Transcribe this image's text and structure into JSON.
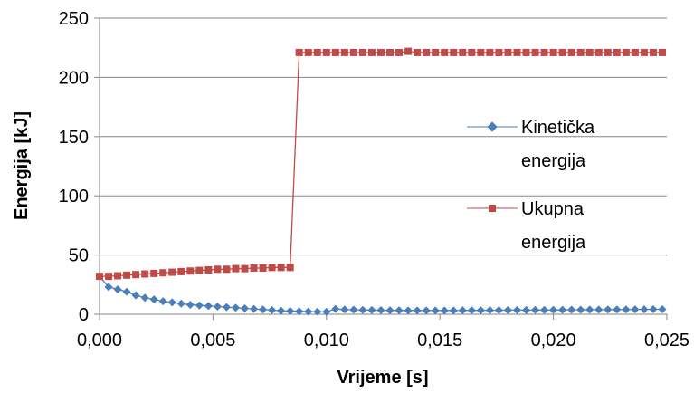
{
  "chart_data": {
    "type": "line",
    "xlabel": "Vrijeme [s]",
    "ylabel": "Energija [kJ]",
    "xlim": [
      0,
      0.025
    ],
    "ylim": [
      0,
      250
    ],
    "x_ticks": [
      "0,000",
      "0,005",
      "0,010",
      "0,015",
      "0,020",
      "0,025"
    ],
    "y_ticks": [
      "0",
      "50",
      "100",
      "150",
      "200",
      "250"
    ],
    "grid": "horizontal",
    "legend_position": "right",
    "series": [
      {
        "name_lines": [
          "Kinetička",
          "energija"
        ],
        "color": "#4A7EBB",
        "marker": "diamond",
        "x": [
          0.0,
          0.0004,
          0.0008,
          0.0012,
          0.0016,
          0.002,
          0.0024,
          0.0028,
          0.0032,
          0.0036,
          0.004,
          0.0044,
          0.0048,
          0.0052,
          0.0056,
          0.006,
          0.0064,
          0.0068,
          0.0072,
          0.0076,
          0.008,
          0.0084,
          0.0088,
          0.0092,
          0.0096,
          0.01,
          0.0104,
          0.0108,
          0.0112,
          0.0116,
          0.012,
          0.0124,
          0.0128,
          0.0132,
          0.0136,
          0.014,
          0.0144,
          0.0148,
          0.0152,
          0.0156,
          0.016,
          0.0164,
          0.0168,
          0.0172,
          0.0176,
          0.018,
          0.0184,
          0.0188,
          0.0192,
          0.0196,
          0.02,
          0.0204,
          0.0208,
          0.0212,
          0.0216,
          0.022,
          0.0224,
          0.0228,
          0.0232,
          0.0236,
          0.024,
          0.0244,
          0.0248
        ],
        "y": [
          32,
          23,
          21,
          19,
          16,
          14,
          12.5,
          11,
          10,
          9,
          8,
          7.5,
          7,
          6.5,
          6,
          5.5,
          5,
          4.5,
          4,
          3.5,
          3,
          2.8,
          2.5,
          2.3,
          2.1,
          2,
          4.5,
          4,
          3.8,
          3.6,
          3.5,
          3.4,
          3.3,
          3.3,
          3.2,
          3.2,
          3.2,
          3.2,
          3.2,
          3.2,
          3.3,
          3.3,
          3.3,
          3.4,
          3.4,
          3.5,
          3.5,
          3.5,
          3.6,
          3.6,
          3.7,
          3.7,
          3.8,
          3.8,
          3.9,
          3.9,
          4,
          4,
          4,
          4.1,
          4.1,
          4.2,
          4.2
        ]
      },
      {
        "name_lines": [
          "Ukupna",
          "energija"
        ],
        "color": "#BE4B48",
        "marker": "square",
        "x": [
          0.0,
          0.0004,
          0.0008,
          0.0012,
          0.0016,
          0.002,
          0.0024,
          0.0028,
          0.0032,
          0.0036,
          0.004,
          0.0044,
          0.0048,
          0.0052,
          0.0056,
          0.006,
          0.0064,
          0.0068,
          0.0072,
          0.0076,
          0.008,
          0.0084,
          0.0088,
          0.0092,
          0.0096,
          0.01,
          0.0104,
          0.0108,
          0.0112,
          0.0116,
          0.012,
          0.0124,
          0.0128,
          0.0132,
          0.0136,
          0.014,
          0.0144,
          0.0148,
          0.0152,
          0.0156,
          0.016,
          0.0164,
          0.0168,
          0.0172,
          0.0176,
          0.018,
          0.0184,
          0.0188,
          0.0192,
          0.0196,
          0.02,
          0.0204,
          0.0208,
          0.0212,
          0.0216,
          0.022,
          0.0224,
          0.0228,
          0.0232,
          0.0236,
          0.024,
          0.0244,
          0.0248
        ],
        "y": [
          32,
          32,
          32.5,
          33,
          33.5,
          34,
          34.5,
          35,
          35.5,
          36,
          36.5,
          37,
          37.5,
          38,
          38,
          38.5,
          38.5,
          39,
          39,
          39.5,
          39.5,
          39.5,
          221,
          221,
          221,
          221,
          221,
          221,
          221,
          221,
          221,
          221,
          221,
          221,
          222,
          221,
          221,
          221,
          221,
          221,
          221,
          221,
          221,
          221,
          221,
          221,
          221,
          221,
          221,
          221,
          221,
          221,
          221,
          221,
          221,
          221,
          221,
          221,
          221,
          221,
          221,
          221,
          221
        ]
      }
    ]
  }
}
